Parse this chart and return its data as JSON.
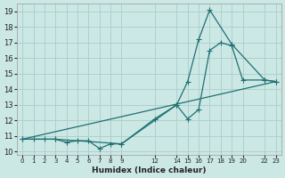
{
  "background_color": "#cce8e5",
  "grid_color": "#aaccca",
  "line_color": "#1e7070",
  "xlabel": "Humidex (Indice chaleur)",
  "xlim": [
    -0.5,
    23.5
  ],
  "ylim": [
    9.8,
    19.5
  ],
  "yticks": [
    10,
    11,
    12,
    13,
    14,
    15,
    16,
    17,
    18,
    19
  ],
  "xticks": [
    0,
    1,
    2,
    3,
    4,
    5,
    6,
    7,
    8,
    9,
    12,
    14,
    15,
    16,
    17,
    18,
    19,
    20,
    22,
    23
  ],
  "xtick_labels": [
    "0",
    "1",
    "2",
    "3",
    "4",
    "5",
    "6",
    "7",
    "8",
    "9",
    "12",
    "14",
    "15",
    "16",
    "17",
    "18",
    "19",
    "20",
    "22",
    "23"
  ],
  "line1_x": [
    0,
    1,
    2,
    3,
    4,
    5,
    6,
    7,
    8,
    9,
    12,
    14,
    15,
    16,
    17,
    18,
    19,
    20,
    22,
    23
  ],
  "line1_y": [
    10.8,
    10.8,
    10.8,
    10.8,
    10.6,
    10.7,
    10.7,
    10.2,
    10.5,
    10.5,
    12.1,
    13.0,
    12.1,
    12.7,
    16.5,
    17.0,
    16.8,
    14.6,
    14.6,
    14.5
  ],
  "line2_x": [
    0,
    3,
    9,
    14,
    15,
    16,
    17,
    19,
    22,
    23
  ],
  "line2_y": [
    10.8,
    10.8,
    10.5,
    13.0,
    14.5,
    17.2,
    19.1,
    16.9,
    14.6,
    14.5
  ],
  "line3_x": [
    0,
    23
  ],
  "line3_y": [
    10.8,
    14.5
  ],
  "marker_size": 4,
  "linewidth": 0.9
}
